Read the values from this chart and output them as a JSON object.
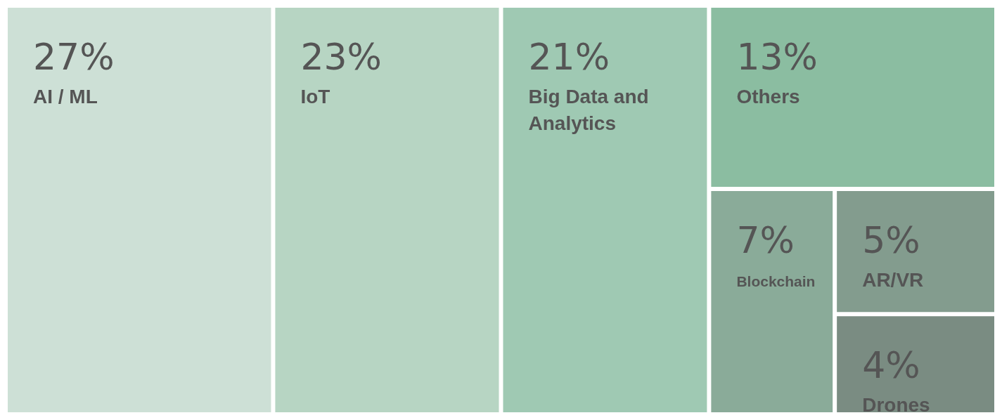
{
  "chart_data": {
    "type": "other",
    "categories": [
      "AI / ML",
      "IoT",
      "Big Data and Analytics",
      "Others",
      "Blockchain",
      "AR/VR",
      "Drones"
    ],
    "values": [
      27,
      23,
      21,
      13,
      7,
      5,
      4
    ],
    "value_labels": [
      "27%",
      "23%",
      "21%",
      "13%",
      "7%",
      "5%",
      "4%"
    ],
    "colors": [
      "#cde0d6",
      "#b7d5c3",
      "#9fc9b3",
      "#8bbda1",
      "#8aab99",
      "#839c8e",
      "#7a8c82"
    ]
  }
}
